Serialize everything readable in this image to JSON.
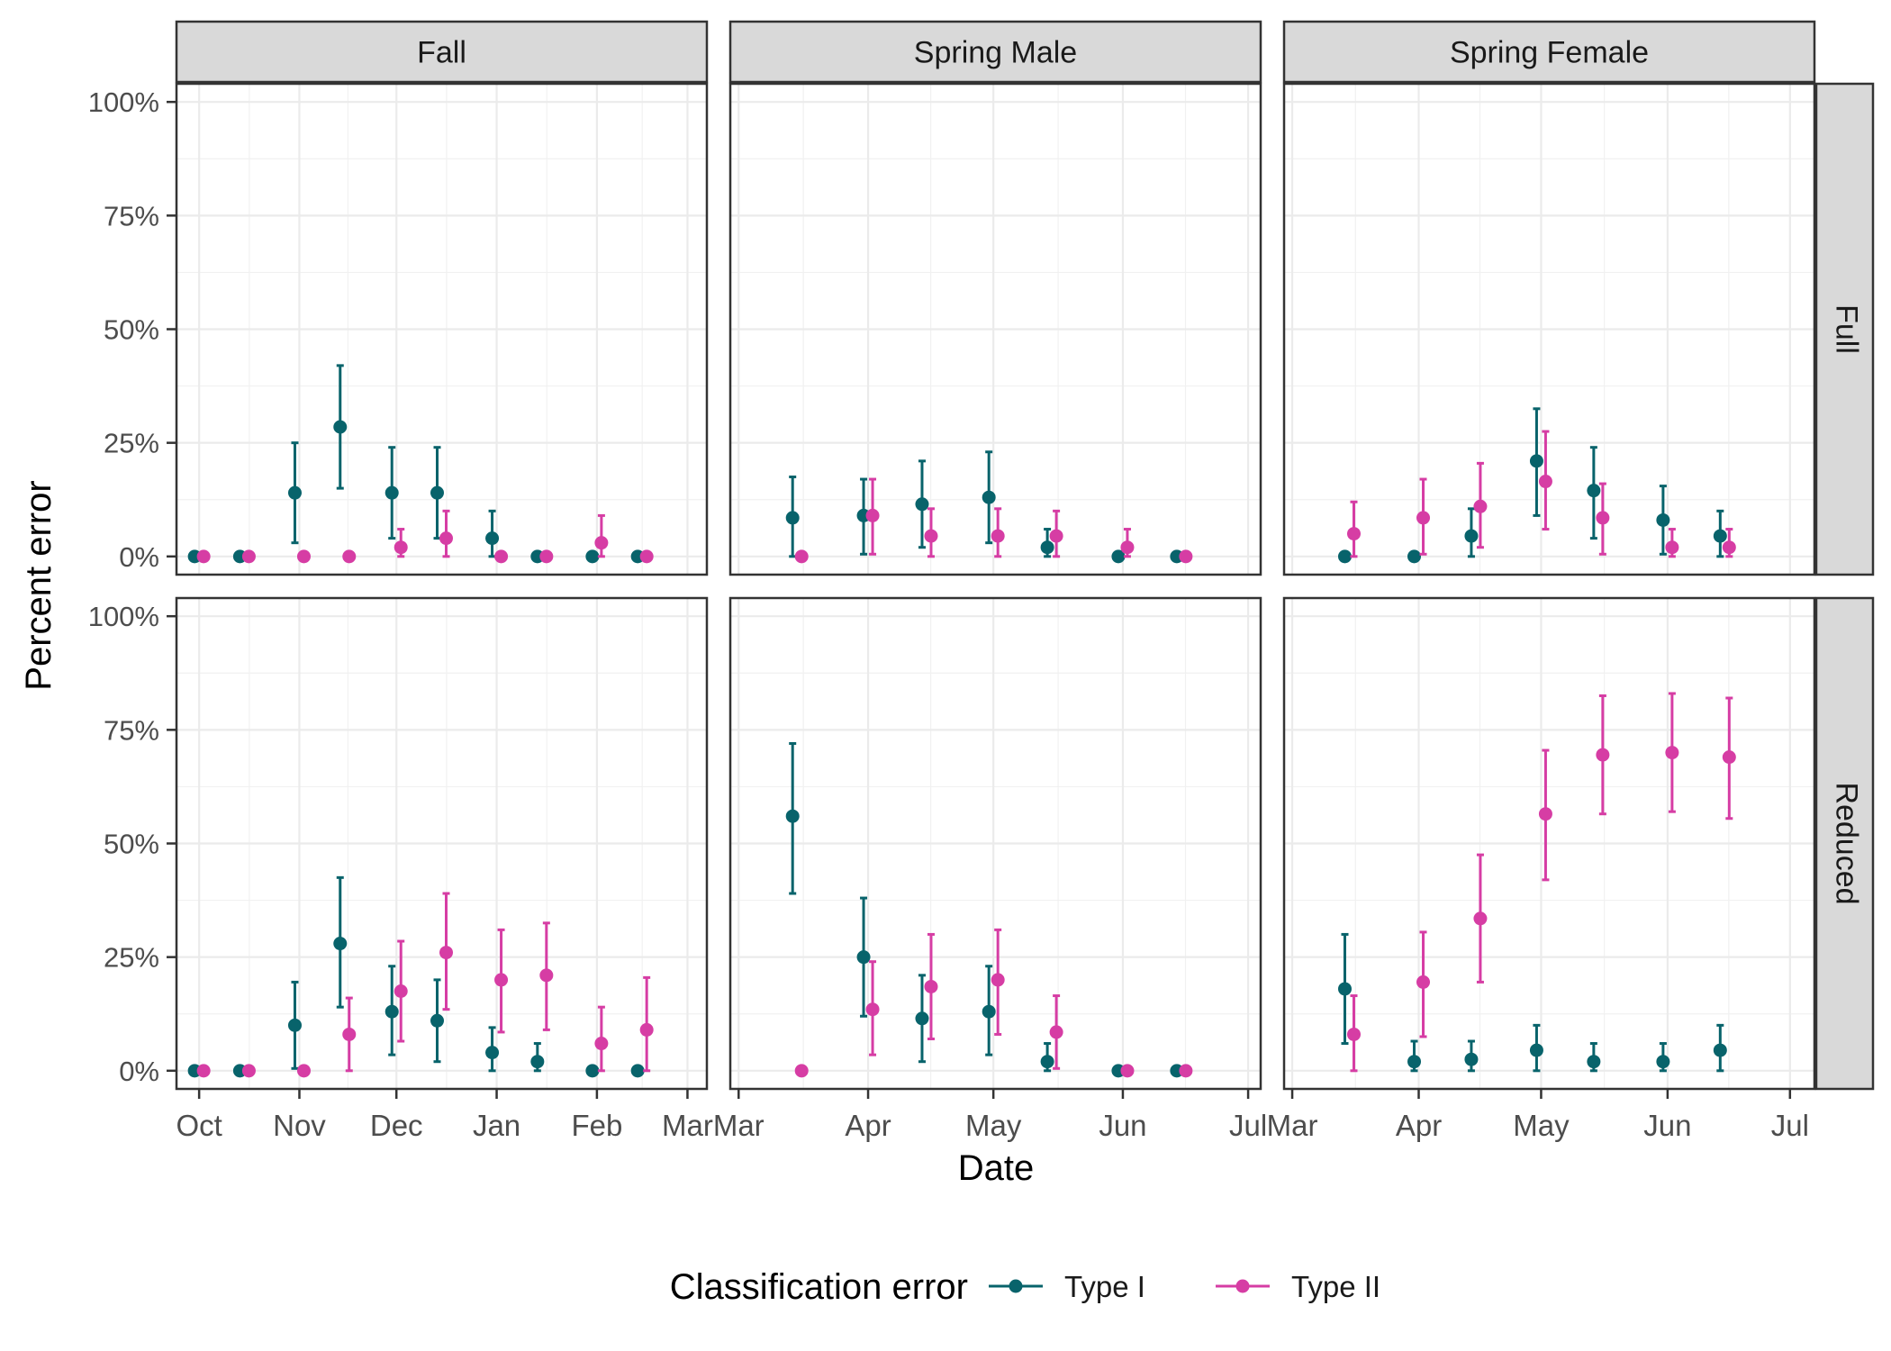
{
  "chart_data": {
    "type": "scatter",
    "variant": "faceted point-range with error bars",
    "y_axis": {
      "label": "Percent error",
      "ylim": [
        -4,
        104
      ],
      "ticks": [
        0,
        25,
        50,
        75,
        100
      ],
      "tick_labels": [
        "0%",
        "25%",
        "50%",
        "75%",
        "100%"
      ]
    },
    "x_axis": {
      "label": "Date"
    },
    "grid": true,
    "legend": {
      "title": "Classification error",
      "position": "bottom",
      "entries": [
        {
          "key": "type1",
          "label": "Type I",
          "color": "#08636B"
        },
        {
          "key": "type2",
          "label": "Type II",
          "color": "#D63DA4"
        }
      ]
    },
    "columns": [
      {
        "label": "Fall",
        "xlim": [
          "2018-09-24",
          "2019-03-07"
        ],
        "ticks": [
          "2018-10-01",
          "2018-11-01",
          "2018-12-01",
          "2019-01-01",
          "2019-02-01",
          "2019-03-01"
        ],
        "tick_labels": [
          "Oct",
          "Nov",
          "Dec",
          "Jan",
          "Feb",
          "Mar"
        ]
      },
      {
        "label": "Spring Male",
        "xlim": [
          "2019-02-27",
          "2019-07-04"
        ],
        "ticks": [
          "2019-03-01",
          "2019-04-01",
          "2019-05-01",
          "2019-06-01",
          "2019-07-01"
        ],
        "tick_labels": [
          "Mar",
          "Apr",
          "May",
          "Jun",
          "Jul"
        ]
      },
      {
        "label": "Spring Female",
        "xlim": [
          "2019-02-27",
          "2019-07-07"
        ],
        "ticks": [
          "2019-03-01",
          "2019-04-01",
          "2019-05-01",
          "2019-06-01",
          "2019-07-01"
        ],
        "tick_labels": [
          "Mar",
          "Apr",
          "May",
          "Jun",
          "Jul"
        ]
      }
    ],
    "rows": [
      {
        "label": "Full"
      },
      {
        "label": "Reduced"
      }
    ],
    "panels": [
      {
        "column": "Fall",
        "row": "Full",
        "type1": [
          {
            "x": "2018-10-01",
            "y": 0,
            "lo": 0,
            "hi": 0
          },
          {
            "x": "2018-10-15",
            "y": 0,
            "lo": 0,
            "hi": 0
          },
          {
            "x": "2018-11-01",
            "y": 14,
            "lo": 3,
            "hi": 25
          },
          {
            "x": "2018-11-15",
            "y": 28.5,
            "lo": 15,
            "hi": 42
          },
          {
            "x": "2018-12-01",
            "y": 14,
            "lo": 4,
            "hi": 24
          },
          {
            "x": "2018-12-15",
            "y": 14,
            "lo": 4,
            "hi": 24
          },
          {
            "x": "2019-01-01",
            "y": 4,
            "lo": 0,
            "hi": 10
          },
          {
            "x": "2019-01-15",
            "y": 0,
            "lo": 0,
            "hi": 0
          },
          {
            "x": "2019-02-01",
            "y": 0,
            "lo": 0,
            "hi": 0
          },
          {
            "x": "2019-02-15",
            "y": 0,
            "lo": 0,
            "hi": 0
          }
        ],
        "type2": [
          {
            "x": "2018-10-01",
            "y": 0,
            "lo": 0,
            "hi": 0
          },
          {
            "x": "2018-10-15",
            "y": 0,
            "lo": 0,
            "hi": 0
          },
          {
            "x": "2018-11-01",
            "y": 0,
            "lo": 0,
            "hi": 0
          },
          {
            "x": "2018-11-15",
            "y": 0,
            "lo": 0,
            "hi": 0
          },
          {
            "x": "2018-12-01",
            "y": 2,
            "lo": 0,
            "hi": 6
          },
          {
            "x": "2018-12-15",
            "y": 4,
            "lo": 0,
            "hi": 10
          },
          {
            "x": "2019-01-01",
            "y": 0,
            "lo": 0,
            "hi": 0
          },
          {
            "x": "2019-01-15",
            "y": 0,
            "lo": 0,
            "hi": 0
          },
          {
            "x": "2019-02-01",
            "y": 3,
            "lo": 0,
            "hi": 9
          },
          {
            "x": "2019-02-15",
            "y": 0,
            "lo": 0,
            "hi": 0
          }
        ]
      },
      {
        "column": "Spring Male",
        "row": "Full",
        "type1": [
          {
            "x": "2019-03-15",
            "y": 8.5,
            "lo": 0,
            "hi": 17.5
          },
          {
            "x": "2019-04-01",
            "y": 9,
            "lo": 0.5,
            "hi": 17
          },
          {
            "x": "2019-04-15",
            "y": 11.5,
            "lo": 2,
            "hi": 21
          },
          {
            "x": "2019-05-01",
            "y": 13,
            "lo": 3,
            "hi": 23
          },
          {
            "x": "2019-05-15",
            "y": 2,
            "lo": 0,
            "hi": 6
          },
          {
            "x": "2019-06-01",
            "y": 0,
            "lo": 0,
            "hi": 0
          },
          {
            "x": "2019-06-15",
            "y": 0,
            "lo": 0,
            "hi": 0
          }
        ],
        "type2": [
          {
            "x": "2019-03-15",
            "y": 0,
            "lo": 0,
            "hi": 0
          },
          {
            "x": "2019-04-01",
            "y": 9,
            "lo": 0.5,
            "hi": 17
          },
          {
            "x": "2019-04-15",
            "y": 4.5,
            "lo": 0,
            "hi": 10.5
          },
          {
            "x": "2019-05-01",
            "y": 4.5,
            "lo": 0,
            "hi": 10.5
          },
          {
            "x": "2019-05-15",
            "y": 4.5,
            "lo": 0,
            "hi": 10
          },
          {
            "x": "2019-06-01",
            "y": 2,
            "lo": 0,
            "hi": 6
          },
          {
            "x": "2019-06-15",
            "y": 0,
            "lo": 0,
            "hi": 0
          }
        ]
      },
      {
        "column": "Spring Female",
        "row": "Full",
        "type1": [
          {
            "x": "2019-03-15",
            "y": 0,
            "lo": 0,
            "hi": 0
          },
          {
            "x": "2019-04-01",
            "y": 0,
            "lo": 0,
            "hi": 0
          },
          {
            "x": "2019-04-15",
            "y": 4.5,
            "lo": 0,
            "hi": 10.5
          },
          {
            "x": "2019-05-01",
            "y": 21,
            "lo": 9,
            "hi": 32.5
          },
          {
            "x": "2019-05-15",
            "y": 14.5,
            "lo": 4,
            "hi": 24
          },
          {
            "x": "2019-06-01",
            "y": 8,
            "lo": 0.5,
            "hi": 15.5
          },
          {
            "x": "2019-06-15",
            "y": 4.5,
            "lo": 0,
            "hi": 10
          }
        ],
        "type2": [
          {
            "x": "2019-03-15",
            "y": 5,
            "lo": 0,
            "hi": 12
          },
          {
            "x": "2019-04-01",
            "y": 8.5,
            "lo": 0.5,
            "hi": 17
          },
          {
            "x": "2019-04-15",
            "y": 11,
            "lo": 2,
            "hi": 20.5
          },
          {
            "x": "2019-05-01",
            "y": 16.5,
            "lo": 6,
            "hi": 27.5
          },
          {
            "x": "2019-05-15",
            "y": 8.5,
            "lo": 0.5,
            "hi": 16
          },
          {
            "x": "2019-06-01",
            "y": 2,
            "lo": 0,
            "hi": 6
          },
          {
            "x": "2019-06-15",
            "y": 2,
            "lo": 0,
            "hi": 6
          }
        ]
      },
      {
        "column": "Fall",
        "row": "Reduced",
        "type1": [
          {
            "x": "2018-10-01",
            "y": 0,
            "lo": 0,
            "hi": 0
          },
          {
            "x": "2018-10-15",
            "y": 0,
            "lo": 0,
            "hi": 0
          },
          {
            "x": "2018-11-01",
            "y": 10,
            "lo": 0.5,
            "hi": 19.5
          },
          {
            "x": "2018-11-15",
            "y": 28,
            "lo": 14,
            "hi": 42.5
          },
          {
            "x": "2018-12-01",
            "y": 13,
            "lo": 3.5,
            "hi": 23
          },
          {
            "x": "2018-12-15",
            "y": 11,
            "lo": 2,
            "hi": 20
          },
          {
            "x": "2019-01-01",
            "y": 4,
            "lo": 0,
            "hi": 9.5
          },
          {
            "x": "2019-01-15",
            "y": 2,
            "lo": 0,
            "hi": 6
          },
          {
            "x": "2019-02-01",
            "y": 0,
            "lo": 0,
            "hi": 0
          },
          {
            "x": "2019-02-15",
            "y": 0,
            "lo": 0,
            "hi": 0
          }
        ],
        "type2": [
          {
            "x": "2018-10-01",
            "y": 0,
            "lo": 0,
            "hi": 0
          },
          {
            "x": "2018-10-15",
            "y": 0,
            "lo": 0,
            "hi": 0
          },
          {
            "x": "2018-11-01",
            "y": 0,
            "lo": 0,
            "hi": 0
          },
          {
            "x": "2018-11-15",
            "y": 8,
            "lo": 0,
            "hi": 16
          },
          {
            "x": "2018-12-01",
            "y": 17.5,
            "lo": 6.5,
            "hi": 28.5
          },
          {
            "x": "2018-12-15",
            "y": 26,
            "lo": 13.5,
            "hi": 39
          },
          {
            "x": "2019-01-01",
            "y": 20,
            "lo": 8.5,
            "hi": 31
          },
          {
            "x": "2019-01-15",
            "y": 21,
            "lo": 9,
            "hi": 32.5
          },
          {
            "x": "2019-02-01",
            "y": 6,
            "lo": 0,
            "hi": 14
          },
          {
            "x": "2019-02-15",
            "y": 9,
            "lo": 0,
            "hi": 20.5
          }
        ]
      },
      {
        "column": "Spring Male",
        "row": "Reduced",
        "type1": [
          {
            "x": "2019-03-15",
            "y": 56,
            "lo": 39,
            "hi": 72
          },
          {
            "x": "2019-04-01",
            "y": 25,
            "lo": 12,
            "hi": 38
          },
          {
            "x": "2019-04-15",
            "y": 11.5,
            "lo": 2,
            "hi": 21
          },
          {
            "x": "2019-05-01",
            "y": 13,
            "lo": 3.5,
            "hi": 23
          },
          {
            "x": "2019-05-15",
            "y": 2,
            "lo": 0,
            "hi": 6
          },
          {
            "x": "2019-06-01",
            "y": 0,
            "lo": 0,
            "hi": 0
          },
          {
            "x": "2019-06-15",
            "y": 0,
            "lo": 0,
            "hi": 0
          }
        ],
        "type2": [
          {
            "x": "2019-03-15",
            "y": 0,
            "lo": 0,
            "hi": 0
          },
          {
            "x": "2019-04-01",
            "y": 13.5,
            "lo": 3.5,
            "hi": 24
          },
          {
            "x": "2019-04-15",
            "y": 18.5,
            "lo": 7,
            "hi": 30
          },
          {
            "x": "2019-05-01",
            "y": 20,
            "lo": 8,
            "hi": 31
          },
          {
            "x": "2019-05-15",
            "y": 8.5,
            "lo": 0.5,
            "hi": 16.5
          },
          {
            "x": "2019-06-01",
            "y": 0,
            "lo": 0,
            "hi": 0
          },
          {
            "x": "2019-06-15",
            "y": 0,
            "lo": 0,
            "hi": 0
          }
        ]
      },
      {
        "column": "Spring Female",
        "row": "Reduced",
        "type1": [
          {
            "x": "2019-03-15",
            "y": 18,
            "lo": 6,
            "hi": 30
          },
          {
            "x": "2019-04-01",
            "y": 2,
            "lo": 0,
            "hi": 6.5
          },
          {
            "x": "2019-04-15",
            "y": 2.5,
            "lo": 0,
            "hi": 6.5
          },
          {
            "x": "2019-05-01",
            "y": 4.5,
            "lo": 0,
            "hi": 10
          },
          {
            "x": "2019-05-15",
            "y": 2,
            "lo": 0,
            "hi": 6
          },
          {
            "x": "2019-06-01",
            "y": 2,
            "lo": 0,
            "hi": 6
          },
          {
            "x": "2019-06-15",
            "y": 4.5,
            "lo": 0,
            "hi": 10
          }
        ],
        "type2": [
          {
            "x": "2019-03-15",
            "y": 8,
            "lo": 0,
            "hi": 16.5
          },
          {
            "x": "2019-04-01",
            "y": 19.5,
            "lo": 7.5,
            "hi": 30.5
          },
          {
            "x": "2019-04-15",
            "y": 33.5,
            "lo": 19.5,
            "hi": 47.5
          },
          {
            "x": "2019-05-01",
            "y": 56.5,
            "lo": 42,
            "hi": 70.5
          },
          {
            "x": "2019-05-15",
            "y": 69.5,
            "lo": 56.5,
            "hi": 82.5
          },
          {
            "x": "2019-06-01",
            "y": 70,
            "lo": 57,
            "hi": 83
          },
          {
            "x": "2019-06-15",
            "y": 69,
            "lo": 55.5,
            "hi": 82
          }
        ]
      }
    ]
  }
}
